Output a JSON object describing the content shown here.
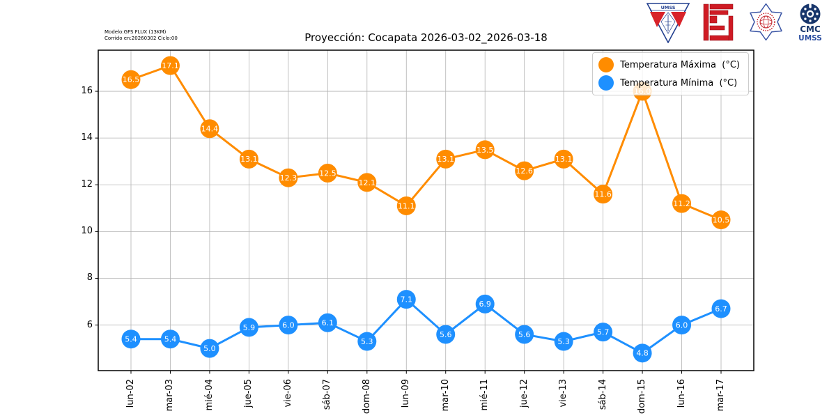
{
  "header": {
    "model_line1": "Modelo:GFS FLUX (13KM)",
    "model_line2": "Corrido en:20260302 Ciclo:00"
  },
  "logos": {
    "names": [
      "umss-pennant-logo",
      "fcyt-logo",
      "fisica-rosette-logo",
      "cmc-umss-logo"
    ],
    "umss_pennant_text": "UMSS",
    "cmc_text_top": "CMC",
    "cmc_text_bottom": "UMSS"
  },
  "chart_data": {
    "type": "line",
    "title": "Proyección: Cocapata 2026-03-02_2026-03-18",
    "categories": [
      "lun-02",
      "mar-03",
      "mié-04",
      "jue-05",
      "vie-06",
      "sáb-07",
      "dom-08",
      "lun-09",
      "mar-10",
      "mié-11",
      "jue-12",
      "vie-13",
      "sáb-14",
      "dom-15",
      "lun-16",
      "mar-17"
    ],
    "series": [
      {
        "name": "Temperatura Máxima  (°C)",
        "color": "#FF8C00",
        "values": [
          16.5,
          17.1,
          14.4,
          13.1,
          12.3,
          12.5,
          12.1,
          11.1,
          13.1,
          13.5,
          12.6,
          13.1,
          11.6,
          16.0,
          11.2,
          10.5
        ]
      },
      {
        "name": "Temperatura Mínima  (°C)",
        "color": "#1E90FF",
        "values": [
          5.4,
          5.4,
          5.0,
          5.9,
          6.0,
          6.1,
          5.3,
          7.1,
          5.6,
          6.9,
          5.6,
          5.3,
          5.7,
          4.8,
          6.0,
          6.7
        ]
      }
    ],
    "yticks": [
      6,
      8,
      10,
      12,
      14,
      16
    ],
    "ylim": [
      4.05,
      17.76
    ],
    "grid": true,
    "legend_position": "upper right",
    "point_label_color": "#ffffff",
    "xlabel": "",
    "ylabel": ""
  }
}
